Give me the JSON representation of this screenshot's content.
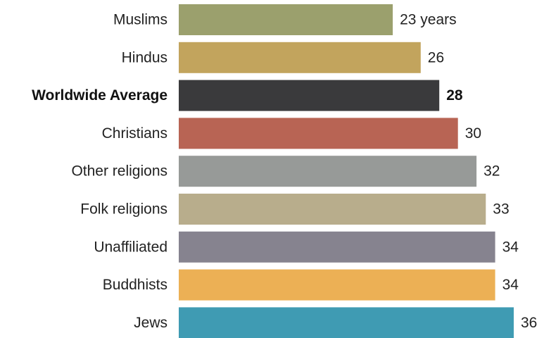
{
  "chart_data": {
    "type": "bar",
    "orientation": "horizontal",
    "categories": [
      "Muslims",
      "Hindus",
      "Worldwide Average",
      "Christians",
      "Other religions",
      "Folk religions",
      "Unaffiliated",
      "Buddhists",
      "Jews"
    ],
    "values": [
      23,
      26,
      28,
      30,
      32,
      33,
      34,
      34,
      36
    ],
    "value_labels": [
      "23 years",
      "26",
      "28",
      "30",
      "32",
      "33",
      "34",
      "34",
      "36"
    ],
    "emphasized_category": "Worldwide Average",
    "colors": [
      "#9ba06d",
      "#c2a45d",
      "#3a3a3c",
      "#b86454",
      "#979a98",
      "#b8ad8c",
      "#86838f",
      "#ecb055",
      "#3f9bb3"
    ],
    "title": "",
    "xlabel": "",
    "ylabel": "",
    "xlim": [
      0,
      36
    ],
    "grid": false,
    "legend": "none"
  }
}
